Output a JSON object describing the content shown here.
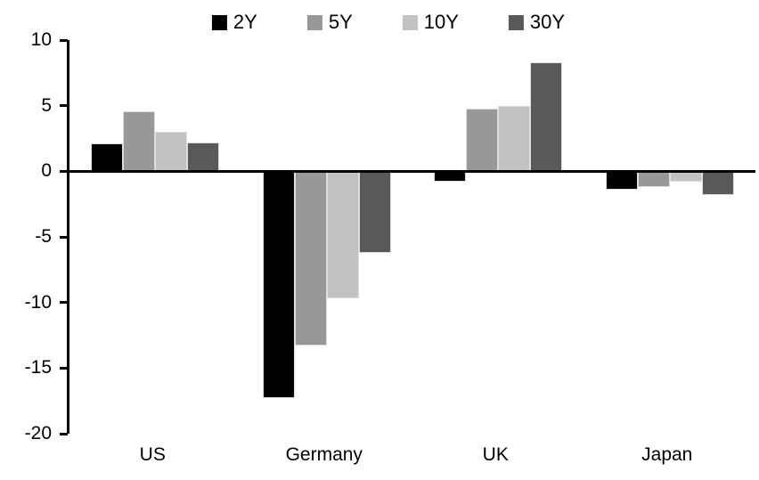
{
  "chart_data": {
    "type": "bar",
    "title": "",
    "xlabel": "",
    "ylabel": "",
    "categories": [
      "US",
      "Germany",
      "UK",
      "Japan"
    ],
    "series": [
      {
        "name": "2Y",
        "color": "#000000",
        "values": [
          2.1,
          -17.3,
          -0.8,
          -1.4
        ]
      },
      {
        "name": "5Y",
        "color": "#989898",
        "values": [
          4.6,
          -13.3,
          4.8,
          -1.2
        ]
      },
      {
        "name": "10Y",
        "color": "#c2c2c2",
        "values": [
          3.0,
          -9.7,
          5.0,
          -0.8
        ]
      },
      {
        "name": "30Y",
        "color": "#595959",
        "values": [
          2.2,
          -6.2,
          8.3,
          -1.8
        ]
      }
    ],
    "ylim": [
      -20,
      10
    ],
    "ytick_step": 5,
    "y_tick_labels": [
      "10",
      "5",
      "0",
      "-5",
      "-10",
      "-15",
      "-20"
    ],
    "legend_position": "top",
    "grid": false,
    "axis_color": "#000000",
    "background_color": "#ffffff"
  }
}
